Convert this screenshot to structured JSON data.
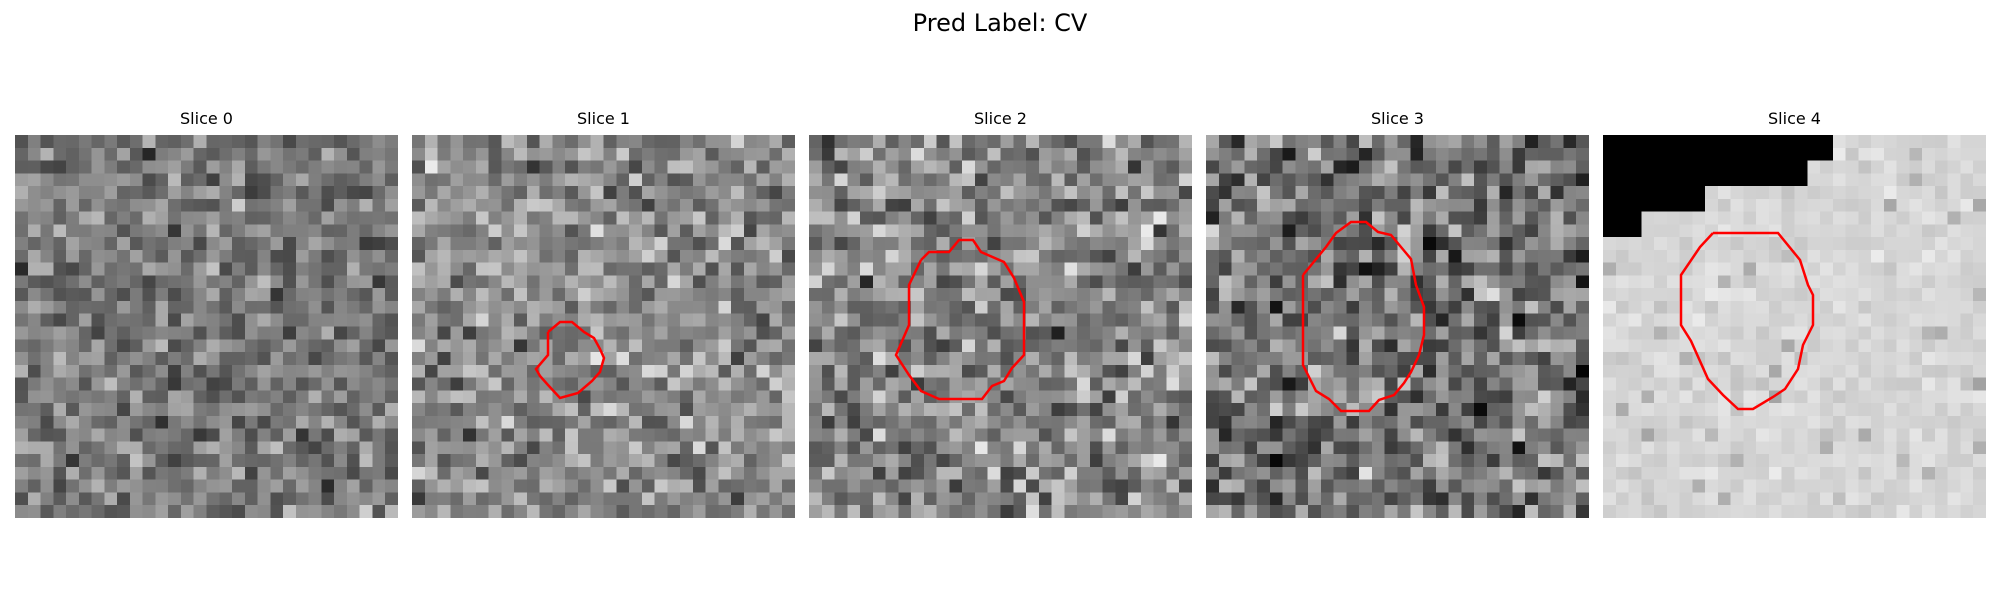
{
  "figure": {
    "title": "Pred Label: CV"
  },
  "slices": [
    {
      "label": "Slice 0",
      "has_contour": false,
      "mean_gray": 0.47,
      "spread": 0.22,
      "seed": 11
    },
    {
      "label": "Slice 1",
      "has_contour": true,
      "contour_color": "#ff0000",
      "mean_gray": 0.55,
      "spread": 0.25,
      "seed": 23
    },
    {
      "label": "Slice 2",
      "has_contour": true,
      "contour_color": "#ff0000",
      "mean_gray": 0.53,
      "spread": 0.28,
      "seed": 37
    },
    {
      "label": "Slice 3",
      "has_contour": true,
      "contour_color": "#ff0000",
      "mean_gray": 0.45,
      "spread": 0.3,
      "seed": 41
    },
    {
      "label": "Slice 4",
      "has_contour": true,
      "contour_color": "#ff0000",
      "mean_gray": 0.84,
      "spread": 0.06,
      "seed": 53,
      "has_black_region": true
    }
  ]
}
